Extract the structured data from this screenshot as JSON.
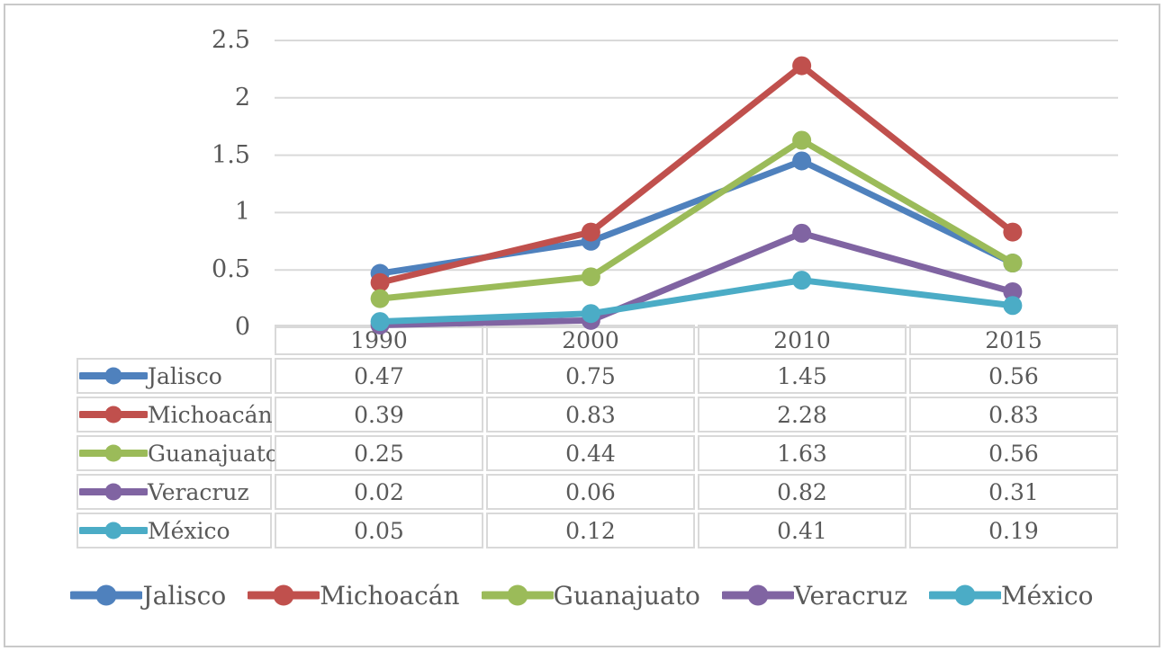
{
  "figure": {
    "background": "#FFFFFF",
    "border_color": "#C9C9C9",
    "text_color": "#595959",
    "grid_color": "#D9D9D9",
    "table_border_color": "#D9D9D9"
  },
  "chart_data": {
    "type": "line",
    "title": "",
    "xlabel": "",
    "ylabel": "",
    "categories": [
      "1990",
      "2000",
      "2010",
      "2015"
    ],
    "series": [
      {
        "name": "Jalisco",
        "color": "#4F81BD",
        "values": [
          0.47,
          0.75,
          1.45,
          0.56
        ]
      },
      {
        "name": "Michoacán",
        "color": "#C0504D",
        "values": [
          0.39,
          0.83,
          2.28,
          0.83
        ]
      },
      {
        "name": "Guanajuato",
        "color": "#9BBB59",
        "values": [
          0.25,
          0.44,
          1.63,
          0.56
        ]
      },
      {
        "name": "Veracruz",
        "color": "#8064A2",
        "values": [
          0.02,
          0.06,
          0.82,
          0.31
        ]
      },
      {
        "name": "México",
        "color": "#4BACC6",
        "values": [
          0.05,
          0.12,
          0.41,
          0.19
        ]
      }
    ],
    "ylim": [
      0,
      2.5
    ],
    "yticks": [
      0,
      0.5,
      1,
      1.5,
      2,
      2.5
    ],
    "ytick_labels": [
      "0",
      "0.5",
      "1",
      "1.5",
      "2",
      "2.5"
    ],
    "grid": true,
    "legend_position": "bottom",
    "data_table_shown": true,
    "value_format_decimals": 2
  }
}
